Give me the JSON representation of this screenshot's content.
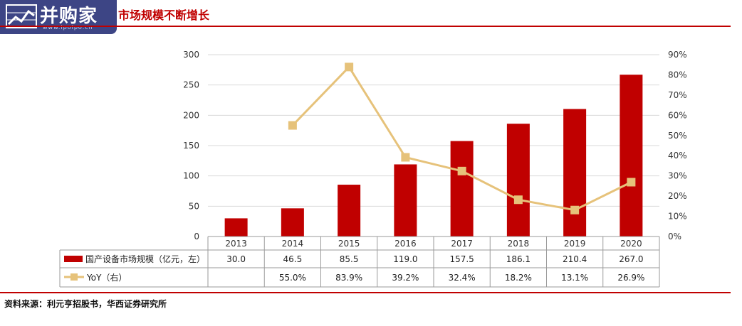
{
  "header": {
    "logo_text": "并购家",
    "logo_url": "www.ipoipo.cn",
    "title": "市场规模不断增长"
  },
  "footer": {
    "source": "资料来源：利元亨招股书，华西证券研究所"
  },
  "colors": {
    "bar": "#c00000",
    "line": "#e6c27a",
    "accent": "#c00000",
    "logo_bg": "#3d4585"
  },
  "chart_data": {
    "type": "bar",
    "categories": [
      "2013",
      "2014",
      "2015",
      "2016",
      "2017",
      "2018",
      "2019",
      "2020"
    ],
    "series": [
      {
        "name": "国产设备市场规模（亿元，左）",
        "type": "bar",
        "axis": "left",
        "values": [
          30.0,
          46.5,
          85.5,
          119.0,
          157.5,
          186.1,
          210.4,
          267.0
        ],
        "labels": [
          "30.0",
          "46.5",
          "85.5",
          "119.0",
          "157.5",
          "186.1",
          "210.4",
          "267.0"
        ]
      },
      {
        "name": "YoY（右）",
        "type": "line",
        "axis": "right",
        "values": [
          null,
          55.0,
          83.9,
          39.2,
          32.4,
          18.2,
          13.1,
          26.9
        ],
        "labels": [
          "",
          "55.0%",
          "83.9%",
          "39.2%",
          "32.4%",
          "18.2%",
          "13.1%",
          "26.9%"
        ]
      }
    ],
    "y_left": {
      "min": 0,
      "max": 300,
      "ticks": [
        "0",
        "50",
        "100",
        "150",
        "200",
        "250",
        "300"
      ]
    },
    "y_right": {
      "min": 0,
      "max": 90,
      "ticks": [
        "0%",
        "10%",
        "20%",
        "30%",
        "40%",
        "50%",
        "60%",
        "70%",
        "80%",
        "90%"
      ]
    },
    "grid": true,
    "legend": "data-table"
  }
}
